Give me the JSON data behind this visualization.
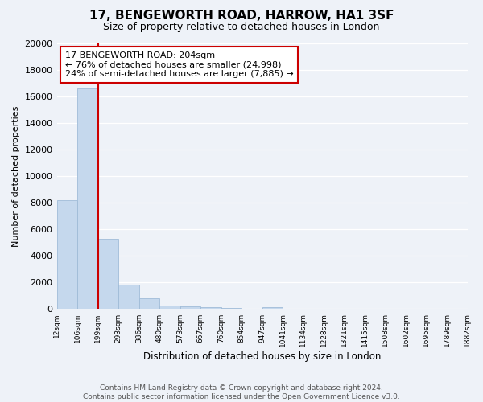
{
  "title": "17, BENGEWORTH ROAD, HARROW, HA1 3SF",
  "subtitle": "Size of property relative to detached houses in London",
  "xlabel": "Distribution of detached houses by size in London",
  "ylabel": "Number of detached properties",
  "tick_labels": [
    "12sqm",
    "106sqm",
    "199sqm",
    "293sqm",
    "386sqm",
    "480sqm",
    "573sqm",
    "667sqm",
    "760sqm",
    "854sqm",
    "947sqm",
    "1041sqm",
    "1134sqm",
    "1228sqm",
    "1321sqm",
    "1415sqm",
    "1508sqm",
    "1602sqm",
    "1695sqm",
    "1789sqm",
    "1882sqm"
  ],
  "bar_values": [
    8200,
    16600,
    5300,
    1850,
    800,
    300,
    200,
    150,
    100,
    0,
    150,
    0,
    0,
    0,
    0,
    0,
    0,
    0,
    0,
    0
  ],
  "bar_color": "#c5d8ed",
  "bar_edge_color": "#a0bcd8",
  "property_line_color": "#cc0000",
  "property_line_bin": 2,
  "annotation_title": "17 BENGEWORTH ROAD: 204sqm",
  "annotation_line2": "← 76% of detached houses are smaller (24,998)",
  "annotation_line3": "24% of semi-detached houses are larger (7,885) →",
  "annotation_box_facecolor": "#ffffff",
  "annotation_box_edgecolor": "#cc0000",
  "ylim": [
    0,
    20000
  ],
  "yticks": [
    0,
    2000,
    4000,
    6000,
    8000,
    10000,
    12000,
    14000,
    16000,
    18000,
    20000
  ],
  "footer_line1": "Contains HM Land Registry data © Crown copyright and database right 2024.",
  "footer_line2": "Contains public sector information licensed under the Open Government Licence v3.0.",
  "bg_color": "#eef2f8",
  "grid_color": "#ffffff"
}
